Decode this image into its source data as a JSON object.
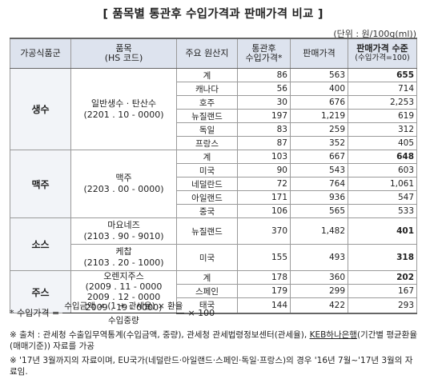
{
  "title": "[ 품목별 통관후 수입가격과 판매가격 비교 ]",
  "unit": "(단위 : 원/100g(ml))",
  "headers": {
    "category": "가공식품군",
    "product": "품목",
    "product_sub": "(HS 코드)",
    "origin": "주요 원산지",
    "import_price": "통관후",
    "import_price_sub": "수입가격*",
    "sale_price": "판매가격",
    "level": "판매가격 수준",
    "level_sub": "(수입가격=100)"
  },
  "groups": [
    {
      "category": "생수",
      "product_name": "일반생수 · 탄산수",
      "product_code": "(2201 . 10 - 0000)",
      "rows": [
        {
          "origin": "계",
          "import": "86",
          "sale": "563",
          "level": "655",
          "bold": true
        },
        {
          "origin": "캐나다",
          "import": "56",
          "sale": "400",
          "level": "714"
        },
        {
          "origin": "호주",
          "import": "30",
          "sale": "676",
          "level": "2,253"
        },
        {
          "origin": "뉴질랜드",
          "import": "197",
          "sale": "1,219",
          "level": "619"
        },
        {
          "origin": "독일",
          "import": "83",
          "sale": "259",
          "level": "312"
        },
        {
          "origin": "프랑스",
          "import": "87",
          "sale": "352",
          "level": "405"
        }
      ]
    },
    {
      "category": "맥주",
      "product_name": "맥주",
      "product_code": "(2203 . 00 - 0000)",
      "rows": [
        {
          "origin": "계",
          "import": "103",
          "sale": "667",
          "level": "648",
          "bold": true
        },
        {
          "origin": "미국",
          "import": "90",
          "sale": "543",
          "level": "603"
        },
        {
          "origin": "네덜란드",
          "import": "72",
          "sale": "764",
          "level": "1,061"
        },
        {
          "origin": "아일랜드",
          "import": "171",
          "sale": "936",
          "level": "547"
        },
        {
          "origin": "중국",
          "import": "106",
          "sale": "565",
          "level": "533"
        }
      ]
    },
    {
      "category": "소스",
      "items": [
        {
          "product_name": "마요네즈",
          "product_code": "(2103 . 90 - 9010)",
          "origin": "뉴질랜드",
          "import": "370",
          "sale": "1,482",
          "level": "401"
        },
        {
          "product_name": "케찹",
          "product_code": "(2103 . 20 - 1000)",
          "origin": "미국",
          "import": "155",
          "sale": "493",
          "level": "318"
        }
      ]
    },
    {
      "category": "주스",
      "product_name": "오렌지주스",
      "product_codes": [
        "(2009 . 11 - 0000",
        "2009 . 12 - 0000",
        "2009 . 19 - 0000)"
      ],
      "rows": [
        {
          "origin": "계",
          "import": "178",
          "sale": "360",
          "level": "202",
          "bold": true
        },
        {
          "origin": "스페인",
          "import": "179",
          "sale": "299",
          "level": "167"
        },
        {
          "origin": "태국",
          "import": "144",
          "sale": "422",
          "level": "293"
        }
      ]
    }
  ],
  "formula": {
    "prefix": "* 수입가격 =",
    "numerator": "수입금액 × (1 + 관세율) × 환율",
    "denominator": "수입중량",
    "suffix": "× 100"
  },
  "notes": {
    "source_a": "※ 출처 : 관세청 수출입무역통계(수입금액, 중량), 관세청 관세법령정보센터(관세율),",
    "source_bank": "KEB하나은행",
    "source_b": "(기간별",
    "source_c": "평균환율(매매기준)) 자료를 가공",
    "period": "※ '17년 3월까지의 자료이며, EU국가(네덜란드·아일랜드·스페인·독일·프랑스)의 경우 '16년 7월~'17년 3월의 자료임."
  }
}
